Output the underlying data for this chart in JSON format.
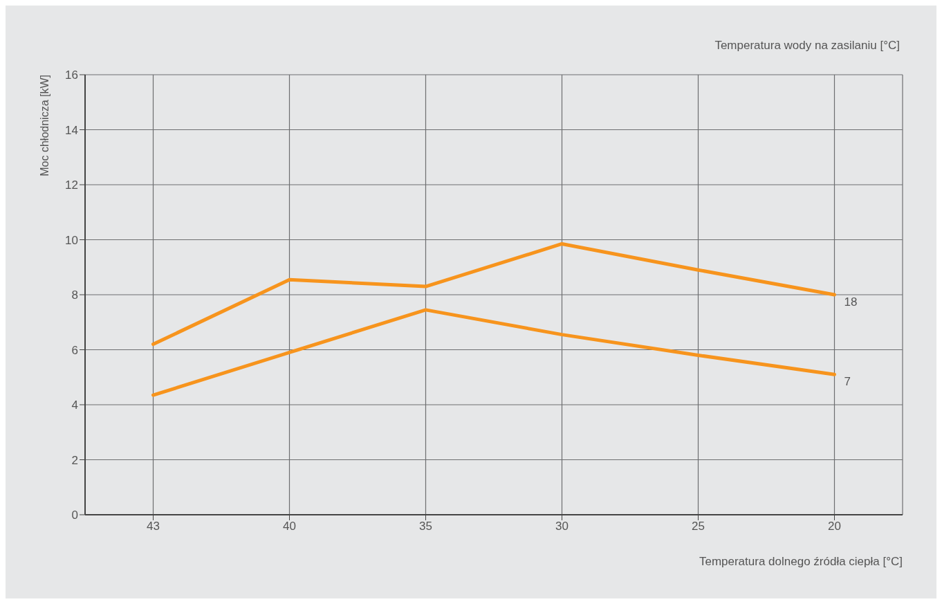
{
  "chart_data": {
    "type": "line",
    "xlabel": "Temperatura dolnego źródła ciepła [°C]",
    "ylabel": "Moc chłodnicza [kW]",
    "legend_title": "Temperatura wody na zasilaniu [°C]",
    "categories": [
      "43",
      "40",
      "35",
      "30",
      "25",
      "20"
    ],
    "series": [
      {
        "name": "18",
        "color": "#f7941d",
        "values": [
          6.2,
          8.55,
          8.3,
          9.85,
          8.9,
          8.0
        ]
      },
      {
        "name": "7",
        "color": "#f7941d",
        "values": [
          4.35,
          5.9,
          7.45,
          6.55,
          5.8,
          5.1
        ]
      }
    ],
    "ylim": [
      0,
      16
    ],
    "yticks": [
      0,
      2,
      4,
      6,
      8,
      10,
      12,
      14,
      16
    ],
    "grid": true,
    "marker": "none",
    "line_style": "solid"
  }
}
